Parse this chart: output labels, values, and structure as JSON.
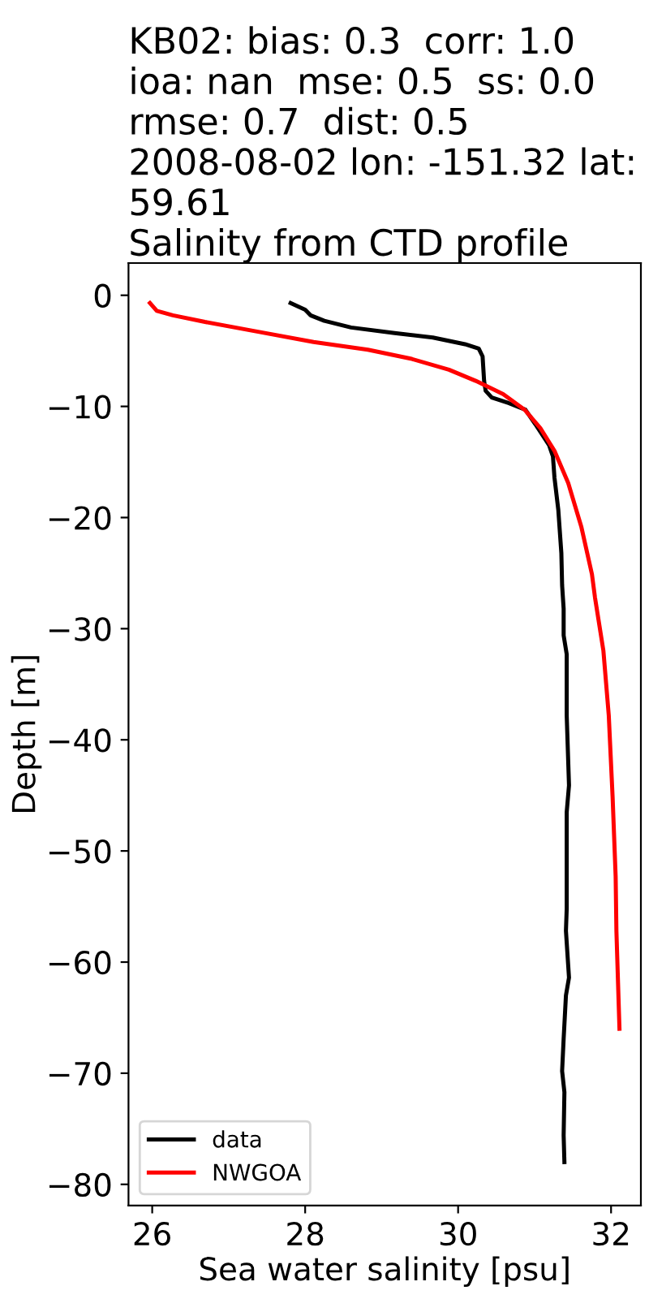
{
  "chart_data": {
    "type": "line",
    "title": "KB02: bias: 0.3  corr: 1.0\nioa: nan  mse: 0.5  ss: 0.0\nrmse: 0.7  dist: 0.5\n2008-08-02 lon: -151.32 lat:\n59.61\nSalinity from CTD profile",
    "xlabel": "Sea water salinity [psu]",
    "ylabel": "Depth [m]",
    "series": [
      {
        "name": "data",
        "color": "#000000",
        "x": [
          27.81,
          28.0,
          28.07,
          28.25,
          28.6,
          29.17,
          29.67,
          30.09,
          30.27,
          30.32,
          30.34,
          30.36,
          30.44,
          30.66,
          30.88,
          31.01,
          31.19,
          31.24,
          31.26,
          31.31,
          31.35,
          31.36,
          31.38,
          31.38,
          31.42,
          31.42,
          31.45,
          31.42,
          31.42,
          31.41,
          31.45,
          31.41,
          31.38,
          31.36,
          31.39,
          31.38,
          31.39
        ],
        "values": [
          -0.7,
          -1.3,
          -1.8,
          -2.3,
          -2.9,
          -3.4,
          -3.8,
          -4.4,
          -4.8,
          -5.5,
          -7.7,
          -8.6,
          -9.2,
          -9.7,
          -10.3,
          -11.6,
          -13.5,
          -14.5,
          -16.4,
          -19.3,
          -23.2,
          -26.1,
          -28.2,
          -30.6,
          -32.3,
          -37.8,
          -44.1,
          -46.5,
          -55.2,
          -57.2,
          -61.4,
          -63.0,
          -66.9,
          -69.8,
          -71.7,
          -75.6,
          -78.0
        ]
      },
      {
        "name": "NWGOA",
        "color": "#ff0000",
        "x": [
          25.97,
          26.06,
          26.27,
          26.69,
          27.4,
          28.11,
          28.82,
          29.38,
          29.88,
          30.23,
          30.59,
          30.87,
          31.08,
          31.26,
          31.44,
          31.61,
          31.75,
          31.79,
          31.9,
          31.97,
          32.02,
          32.06,
          32.07,
          32.11
        ],
        "values": [
          -0.7,
          -1.4,
          -1.8,
          -2.4,
          -3.3,
          -4.2,
          -4.9,
          -5.7,
          -6.7,
          -7.7,
          -8.9,
          -10.3,
          -12.0,
          -14.0,
          -16.9,
          -20.8,
          -25.1,
          -27.2,
          -32.0,
          -37.8,
          -45.1,
          -52.3,
          -57.2,
          -66.0
        ]
      }
    ],
    "xlim": [
      25.69,
      32.39
    ],
    "xticks": [
      26,
      28,
      30,
      32
    ],
    "ylim": [
      -81.9,
      2.9
    ],
    "yticks": [
      0,
      {
        "value": -10,
        "label": "−10"
      },
      {
        "value": -20,
        "label": "−20"
      },
      {
        "value": -30,
        "label": "−30"
      },
      {
        "value": -40,
        "label": "−40"
      },
      {
        "value": -50,
        "label": "−50"
      },
      {
        "value": -60,
        "label": "−60"
      },
      {
        "value": -70,
        "label": "−70"
      },
      {
        "value": -80,
        "label": "−80"
      }
    ],
    "grid": false,
    "legend": "lower left"
  }
}
